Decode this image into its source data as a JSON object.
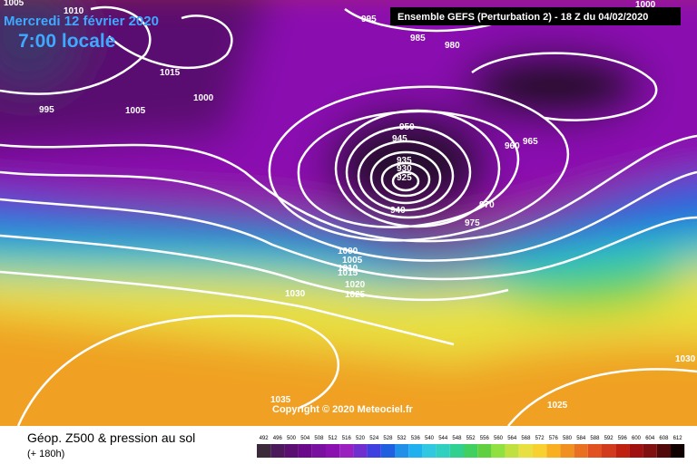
{
  "header": {
    "date": "Mercredi 12 février 2020",
    "time": "7:00 locale",
    "model": "Ensemble GEFS  (Perturbation 2)  -  18 Z du 04/02/2020"
  },
  "isobar_labels": [
    "1010",
    "1005",
    "995",
    "985",
    "980",
    "1000",
    "1015",
    "1005",
    "1000",
    "995",
    "950",
    "945",
    "935",
    "930",
    "925",
    "960",
    "965",
    "970",
    "975",
    "940",
    "1000",
    "1005",
    "1010",
    "1015",
    "1020",
    "1025",
    "1030",
    "1035",
    "1030",
    "1025"
  ],
  "copyright": "Copyright © 2020 Meteociel.fr",
  "legend": {
    "title": "Géop. Z500 & pression au sol",
    "lead": "(+ 180h)",
    "scale": [
      "492",
      "496",
      "500",
      "504",
      "508",
      "512",
      "516",
      "520",
      "524",
      "528",
      "532",
      "536",
      "540",
      "544",
      "548",
      "552",
      "556",
      "560",
      "564",
      "568",
      "572",
      "576",
      "580",
      "584",
      "588",
      "592",
      "596",
      "600",
      "604",
      "608",
      "612"
    ]
  }
}
